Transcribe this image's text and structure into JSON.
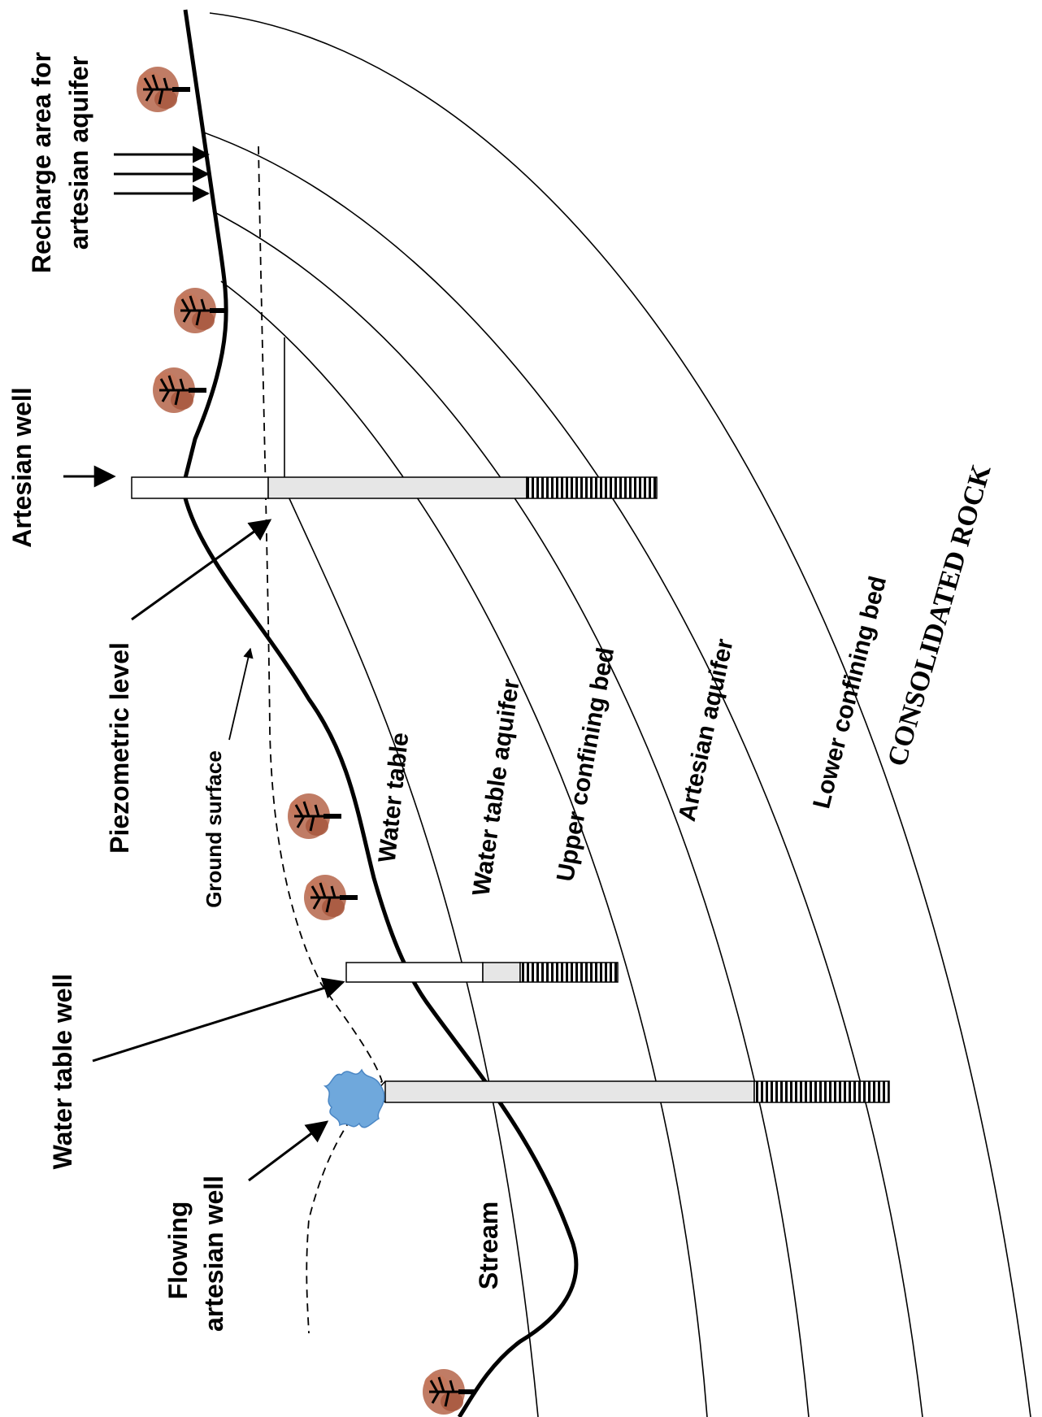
{
  "labels": {
    "recharge_line1": "Recharge area for",
    "recharge_line2": "artesian aquifer",
    "artesian_well": "Artesian well",
    "piezometric_level": "Piezometric level",
    "ground_surface": "Ground surface",
    "water_table_well": "Water table well",
    "flowing_line1": "Flowing",
    "flowing_line2": "artesian well",
    "stream": "Stream",
    "water_table": "Water table",
    "water_table_aquifer": "Water table aquifer",
    "upper_confining_bed": "Upper confining bed",
    "artesian_aquifer": "Artesian aquifer",
    "lower_confining_bed": "Lower confining bed",
    "consolidated_rock": "CONSOLIDATED ROCK"
  },
  "colors": {
    "tree_foliage": "#b5654a",
    "water_splash": "#6fa8dc",
    "well_casing": "#e6e6e6",
    "well_air": "#ffffff"
  },
  "icons": [
    "tree-icon",
    "water-splash-icon"
  ]
}
